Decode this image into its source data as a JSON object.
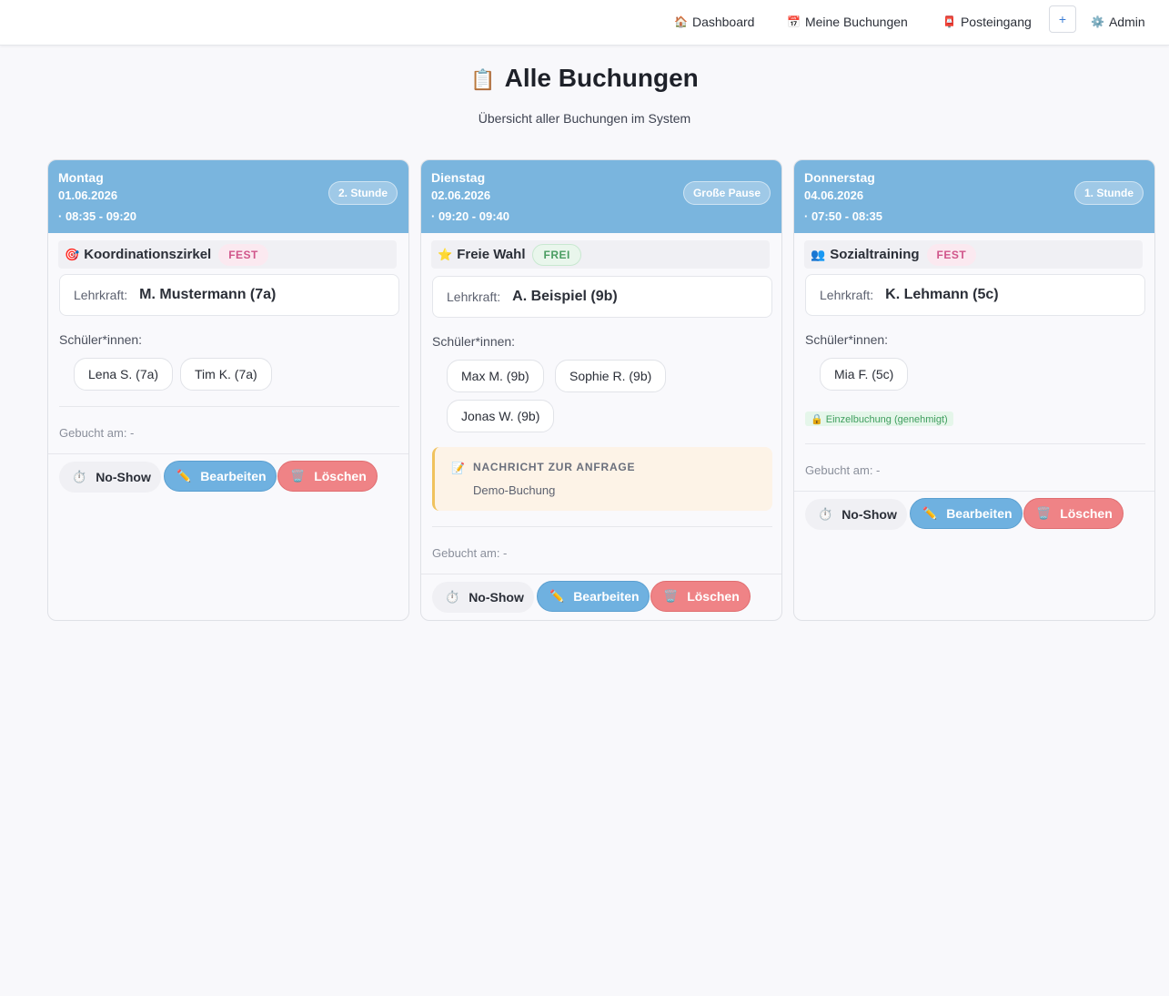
{
  "nav": {
    "dashboard": {
      "icon": "🏠",
      "label": "Dashboard"
    },
    "bookings": {
      "icon": "📅",
      "label": "Meine Buchungen"
    },
    "inbox": {
      "icon": "📮",
      "label": "Posteingang"
    },
    "plus": "+",
    "admin": {
      "icon": "⚙️",
      "label": "Admin"
    }
  },
  "page": {
    "icon": "📋",
    "title": "Alle Buchungen",
    "subtitle": "Übersicht aller Buchungen im System"
  },
  "common": {
    "teacher_label": "Lehrkraft:",
    "students_label": "Schüler*innen:",
    "booked_label": "Gebucht am: -",
    "noshow": {
      "icon": "⏱️",
      "label": "No-Show"
    },
    "edit": {
      "icon": "✏️",
      "label": "Bearbeiten"
    },
    "delete": {
      "icon": "🗑️",
      "label": "Löschen"
    }
  },
  "cards": [
    {
      "day": "Montag",
      "date": "01.06.2026",
      "time": "· 08:35 - 09:20",
      "slot": "2. Stunde",
      "activity_icon": "🎯",
      "activity": "Koordinationszirkel",
      "badge": "FEST",
      "teacher": "M. Mustermann (7a)",
      "students": [
        "Lena S. (7a)",
        "Tim K. (7a)"
      ]
    },
    {
      "day": "Dienstag",
      "date": "02.06.2026",
      "time": "· 09:20 - 09:40",
      "slot": "Große Pause",
      "activity_icon": "⭐",
      "activity": "Freie Wahl",
      "badge": "FREI",
      "teacher": "A. Beispiel (9b)",
      "students": [
        "Max M. (9b)",
        "Sophie R. (9b)",
        "Jonas W. (9b)"
      ],
      "note": {
        "icon": "📝",
        "title": "NACHRICHT ZUR ANFRAGE",
        "text": "Demo-Buchung"
      }
    },
    {
      "day": "Donnerstag",
      "date": "04.06.2026",
      "time": "· 07:50 - 08:35",
      "slot": "1. Stunde",
      "activity_icon": "👥",
      "activity": "Sozialtraining",
      "badge": "FEST",
      "teacher": "K. Lehmann (5c)",
      "students": [
        "Mia F. (5c)"
      ],
      "single": "🔒 Einzelbuchung (genehmigt)"
    }
  ]
}
